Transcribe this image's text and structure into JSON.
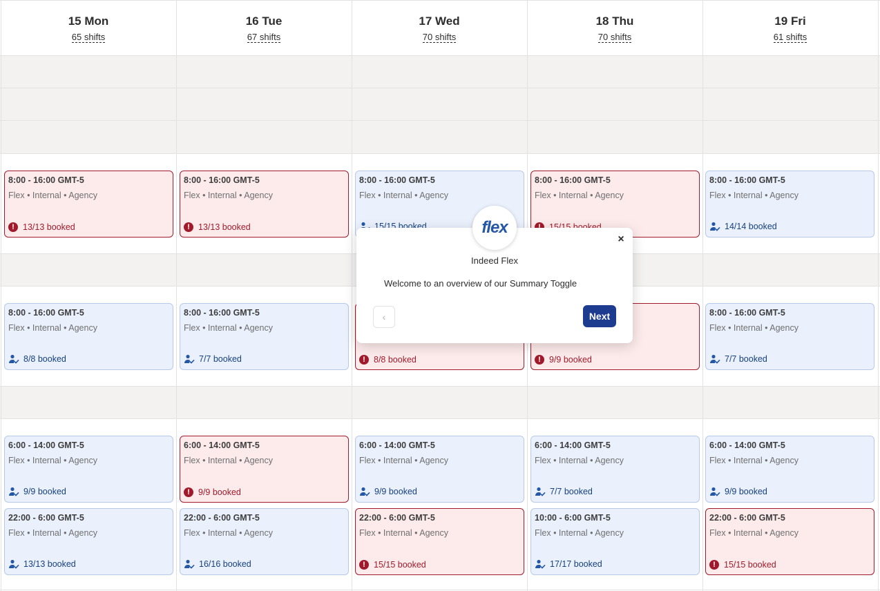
{
  "days": [
    {
      "title": "15 Mon",
      "shifts": "65 shifts"
    },
    {
      "title": "16 Tue",
      "shifts": "67 shifts"
    },
    {
      "title": "17 Wed",
      "shifts": "70 shifts"
    },
    {
      "title": "18 Thu",
      "shifts": "70 shifts"
    },
    {
      "title": "19 Fri",
      "shifts": "61 shifts"
    }
  ],
  "rows": [
    {
      "cards": [
        {
          "time": "8:00 - 16:00 GMT-5",
          "meta": "Flex • Internal • Agency",
          "booked": "13/13 booked",
          "status": "alert",
          "icon": "alert-icon"
        },
        {
          "time": "8:00 - 16:00 GMT-5",
          "meta": "Flex • Internal • Agency",
          "booked": "13/13 booked",
          "status": "alert",
          "icon": "alert-icon"
        },
        {
          "time": "8:00 - 16:00 GMT-5",
          "meta": "Flex • Internal • Agency",
          "booked": "15/15 booked",
          "status": "ok",
          "icon": "person-check-icon"
        },
        {
          "time": "8:00 - 16:00 GMT-5",
          "meta": "Flex • Internal • Agency",
          "booked": "15/15 booked",
          "status": "alert",
          "icon": "alert-icon"
        },
        {
          "time": "8:00 - 16:00 GMT-5",
          "meta": "Flex • Internal • Agency",
          "booked": "14/14 booked",
          "status": "ok",
          "icon": "person-check-icon"
        }
      ]
    },
    {
      "cards": [
        {
          "time": "8:00 - 16:00 GMT-5",
          "meta": "Flex • Internal • Agency",
          "booked": "8/8 booked",
          "status": "ok",
          "icon": "person-check-icon"
        },
        {
          "time": "8:00 - 16:00 GMT-5",
          "meta": "Flex • Internal • Agency",
          "booked": "7/7 booked",
          "status": "ok",
          "icon": "person-check-icon"
        },
        {
          "time": "",
          "meta": "",
          "booked": "8/8 booked",
          "status": "alert",
          "icon": "alert-icon"
        },
        {
          "time": "",
          "meta": "",
          "booked": "9/9 booked",
          "status": "alert",
          "icon": "alert-icon"
        },
        {
          "time": "8:00 - 16:00 GMT-5",
          "meta": "Flex • Internal • Agency",
          "booked": "7/7 booked",
          "status": "ok",
          "icon": "person-check-icon"
        }
      ]
    },
    {
      "cards": [
        {
          "time": "6:00 - 14:00 GMT-5",
          "meta": "Flex • Internal • Agency",
          "booked": "9/9 booked",
          "status": "ok",
          "icon": "person-check-icon"
        },
        {
          "time": "6:00 - 14:00 GMT-5",
          "meta": "Flex • Internal • Agency",
          "booked": "9/9 booked",
          "status": "alert",
          "icon": "alert-icon"
        },
        {
          "time": "6:00 - 14:00 GMT-5",
          "meta": "Flex • Internal • Agency",
          "booked": "9/9 booked",
          "status": "ok",
          "icon": "person-check-icon"
        },
        {
          "time": "6:00 - 14:00 GMT-5",
          "meta": "Flex • Internal • Agency",
          "booked": "7/7 booked",
          "status": "ok",
          "icon": "person-check-icon"
        },
        {
          "time": "6:00 - 14:00 GMT-5",
          "meta": "Flex • Internal • Agency",
          "booked": "9/9 booked",
          "status": "ok",
          "icon": "person-check-icon"
        }
      ]
    },
    {
      "cards": [
        {
          "time": "22:00 - 6:00 GMT-5",
          "meta": "Flex • Internal • Agency",
          "booked": "13/13 booked",
          "status": "ok",
          "icon": "person-check-icon"
        },
        {
          "time": "22:00 - 6:00 GMT-5",
          "meta": "Flex • Internal • Agency",
          "booked": "16/16 booked",
          "status": "ok",
          "icon": "person-check-icon"
        },
        {
          "time": "22:00 - 6:00 GMT-5",
          "meta": "Flex • Internal • Agency",
          "booked": "15/15 booked",
          "status": "alert",
          "icon": "alert-icon"
        },
        {
          "time": "10:00 - 6:00 GMT-5",
          "meta": "Flex • Internal • Agency",
          "booked": "17/17 booked",
          "status": "ok",
          "icon": "person-check-icon"
        },
        {
          "time": "22:00 - 6:00 GMT-5",
          "meta": "Flex • Internal • Agency",
          "booked": "15/15 booked",
          "status": "alert",
          "icon": "alert-icon"
        }
      ]
    }
  ],
  "popover": {
    "logo_text": "flex",
    "title": "Indeed Flex",
    "message": "Welcome to an overview of our Summary Toggle",
    "next_label": "Next",
    "close_glyph": "×",
    "prev_glyph": "‹"
  },
  "colors": {
    "ok_bg": "#eaf1fc",
    "ok_text": "#164081",
    "alert_bg": "#fdebeb",
    "alert_text": "#a11a2b",
    "next_button": "#1d3b8f"
  }
}
